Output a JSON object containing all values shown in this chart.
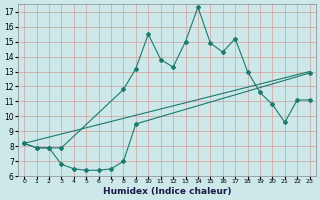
{
  "xlabel": "Humidex (Indice chaleur)",
  "bg_color": "#cce8e8",
  "grid_color": "#d4a0a0",
  "line_color": "#1a7a6e",
  "xlim": [
    -0.5,
    23.5
  ],
  "ylim": [
    6,
    17.5
  ],
  "yticks": [
    6,
    7,
    8,
    9,
    10,
    11,
    12,
    13,
    14,
    15,
    16,
    17
  ],
  "line1_x": [
    0,
    1,
    2,
    3,
    8,
    9,
    10,
    11,
    12,
    13,
    14,
    15,
    16,
    17,
    18,
    19,
    20,
    21,
    22,
    23
  ],
  "line1_y": [
    8.2,
    7.9,
    7.9,
    7.9,
    11.8,
    13.2,
    15.5,
    13.8,
    13.3,
    15.0,
    17.3,
    14.9,
    14.3,
    15.2,
    13.0,
    11.6,
    10.8,
    9.6,
    11.1,
    11.1
  ],
  "line2_x": [
    0,
    23
  ],
  "line2_y": [
    8.2,
    13.0
  ],
  "line3_x": [
    0,
    1,
    2,
    3,
    4,
    5,
    6,
    7,
    8,
    9,
    23
  ],
  "line3_y": [
    8.2,
    7.9,
    7.9,
    6.8,
    6.5,
    6.4,
    6.4,
    6.5,
    7.0,
    9.5,
    12.9
  ],
  "marker": "D",
  "markersize": 2.0,
  "linewidth": 0.8
}
